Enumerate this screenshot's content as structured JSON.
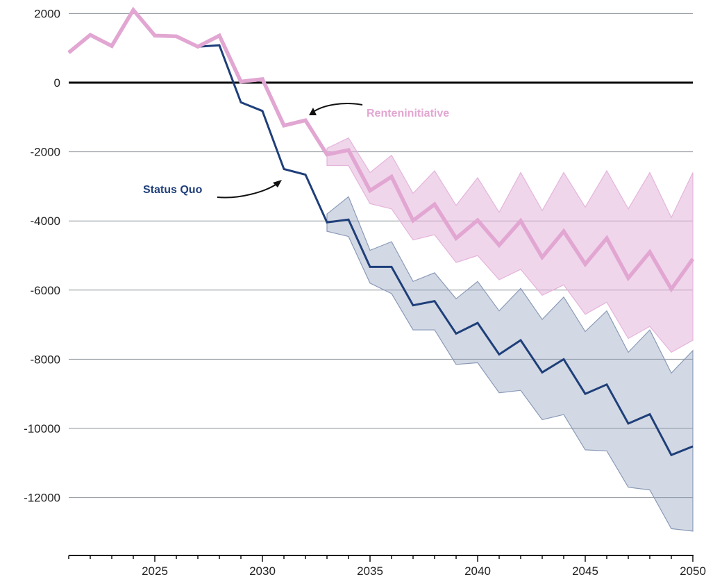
{
  "chart_data": {
    "type": "area",
    "x": [
      2021,
      2022,
      2023,
      2024,
      2025,
      2026,
      2027,
      2028,
      2029,
      2030,
      2031,
      2032,
      2033,
      2034,
      2035,
      2036,
      2037,
      2038,
      2039,
      2040,
      2041,
      2042,
      2043,
      2044,
      2045,
      2046,
      2047,
      2048,
      2049,
      2050
    ],
    "xlim": [
      2021,
      2050
    ],
    "ylim": [
      -13500,
      2300
    ],
    "xticks": [
      2025,
      2030,
      2035,
      2040,
      2045,
      2050
    ],
    "yticks": [
      2000,
      0,
      -2000,
      -4000,
      -6000,
      -8000,
      -10000,
      -12000
    ],
    "grid": "horizontal",
    "series": [
      {
        "name": "Status Quo",
        "color": "#1f3f7a",
        "band_color": "#8a9ab8",
        "values": [
          870,
          1380,
          1060,
          2100,
          1360,
          1340,
          1040,
          1080,
          -570,
          -820,
          -2500,
          -2660,
          -4040,
          -3960,
          -5330,
          -5330,
          -6440,
          -6320,
          -7260,
          -6950,
          -7860,
          -7450,
          -8380,
          -8000,
          -9000,
          -8730,
          -9860,
          -9590,
          -10770,
          -10520
        ],
        "band_start_index": 12,
        "band_lower": [
          -4300,
          -4450,
          -5800,
          -6100,
          -7150,
          -7150,
          -8150,
          -8100,
          -8970,
          -8900,
          -9750,
          -9600,
          -10620,
          -10650,
          -11700,
          -11780,
          -12900,
          -12970
        ],
        "band_upper": [
          -3800,
          -3300,
          -4850,
          -4600,
          -5750,
          -5500,
          -6250,
          -5750,
          -6600,
          -5950,
          -6850,
          -6200,
          -7200,
          -6600,
          -7800,
          -7150,
          -8400,
          -7750
        ]
      },
      {
        "name": "Renteninitiative",
        "color": "#e2a6d2",
        "band_color": "#e4b4db",
        "values": [
          870,
          1380,
          1060,
          2100,
          1360,
          1340,
          1040,
          1360,
          30,
          100,
          -1240,
          -1090,
          -2080,
          -1950,
          -3120,
          -2720,
          -3990,
          -3520,
          -4500,
          -3980,
          -4700,
          -4000,
          -5050,
          -4300,
          -5250,
          -4500,
          -5650,
          -4900,
          -5970,
          -5100
        ],
        "band_start_index": 12,
        "band_lower": [
          -2400,
          -2400,
          -3500,
          -3650,
          -4550,
          -4400,
          -5200,
          -5000,
          -5700,
          -5400,
          -6150,
          -5850,
          -6700,
          -6350,
          -7400,
          -7050,
          -7800,
          -7450
        ],
        "band_upper": [
          -1900,
          -1600,
          -2600,
          -2100,
          -3200,
          -2550,
          -3550,
          -2750,
          -3750,
          -2600,
          -3700,
          -2600,
          -3600,
          -2550,
          -3650,
          -2600,
          -3900,
          -2600
        ]
      }
    ],
    "annotations": [
      {
        "text": "Renteninitiative",
        "series": "Renteninitiative",
        "color": "#e2a6d2"
      },
      {
        "text": "Status Quo",
        "series": "Status Quo",
        "color": "#1f3f7a"
      }
    ]
  }
}
